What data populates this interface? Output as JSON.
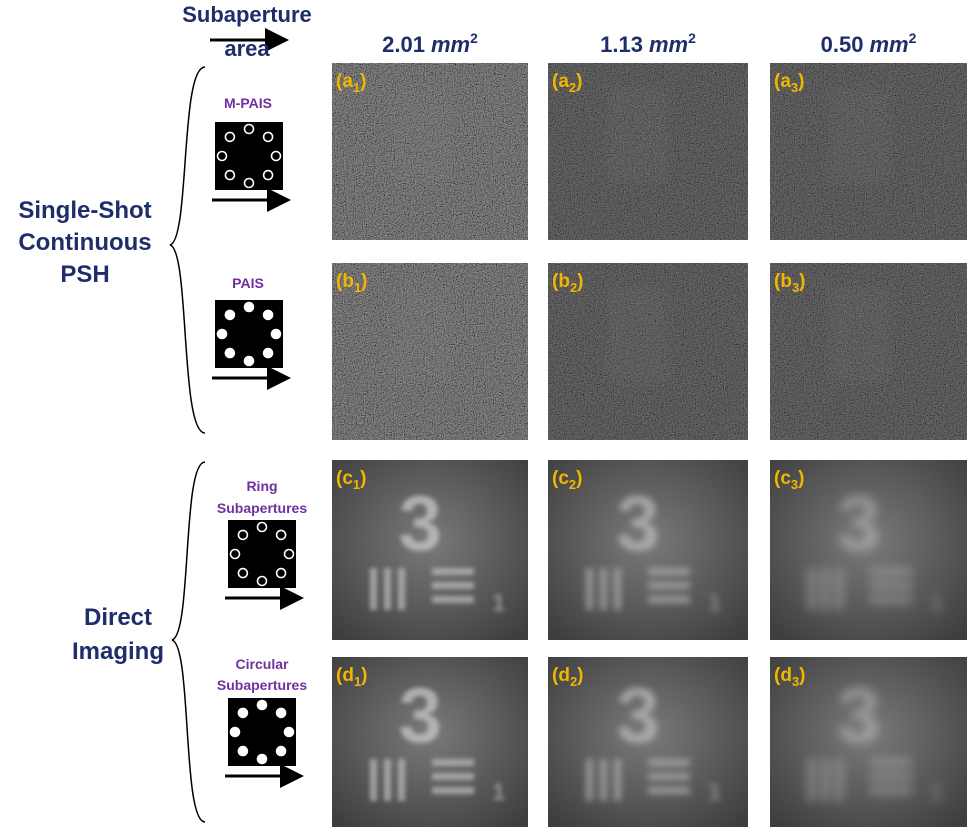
{
  "header": {
    "axis_label": [
      "Subaperture",
      "area"
    ],
    "columns": [
      {
        "value": "2.01",
        "unit": "mm",
        "exponent": "2"
      },
      {
        "value": "1.13",
        "unit": "mm",
        "exponent": "2"
      },
      {
        "value": "0.50",
        "unit": "mm",
        "exponent": "2"
      }
    ]
  },
  "groups": [
    {
      "label": [
        "Single-Shot",
        "Continuous",
        "PSH"
      ]
    },
    {
      "label": [
        "Direct",
        "Imaging"
      ]
    }
  ],
  "rows": [
    {
      "label": [
        "M-PAIS"
      ],
      "panels": [
        [
          "(a",
          "1",
          ")"
        ],
        [
          "(a",
          "2",
          ")"
        ],
        [
          "(a",
          "3",
          ")"
        ]
      ]
    },
    {
      "label": [
        "PAIS"
      ],
      "panels": [
        [
          "(b",
          "1",
          ")"
        ],
        [
          "(b",
          "2",
          ")"
        ],
        [
          "(b",
          "3",
          ")"
        ]
      ]
    },
    {
      "label": [
        "Ring",
        "Subapertures"
      ],
      "panels": [
        [
          "(c",
          "1",
          ")"
        ],
        [
          "(c",
          "2",
          ")"
        ],
        [
          "(c",
          "3",
          ")"
        ]
      ]
    },
    {
      "label": [
        "Circular",
        "Subapertures"
      ],
      "panels": [
        [
          "(d",
          "1",
          ")"
        ],
        [
          "(d",
          "2",
          ")"
        ],
        [
          "(d",
          "3",
          ")"
        ]
      ]
    }
  ],
  "target": {
    "digit": "3",
    "small_digit": "1"
  }
}
